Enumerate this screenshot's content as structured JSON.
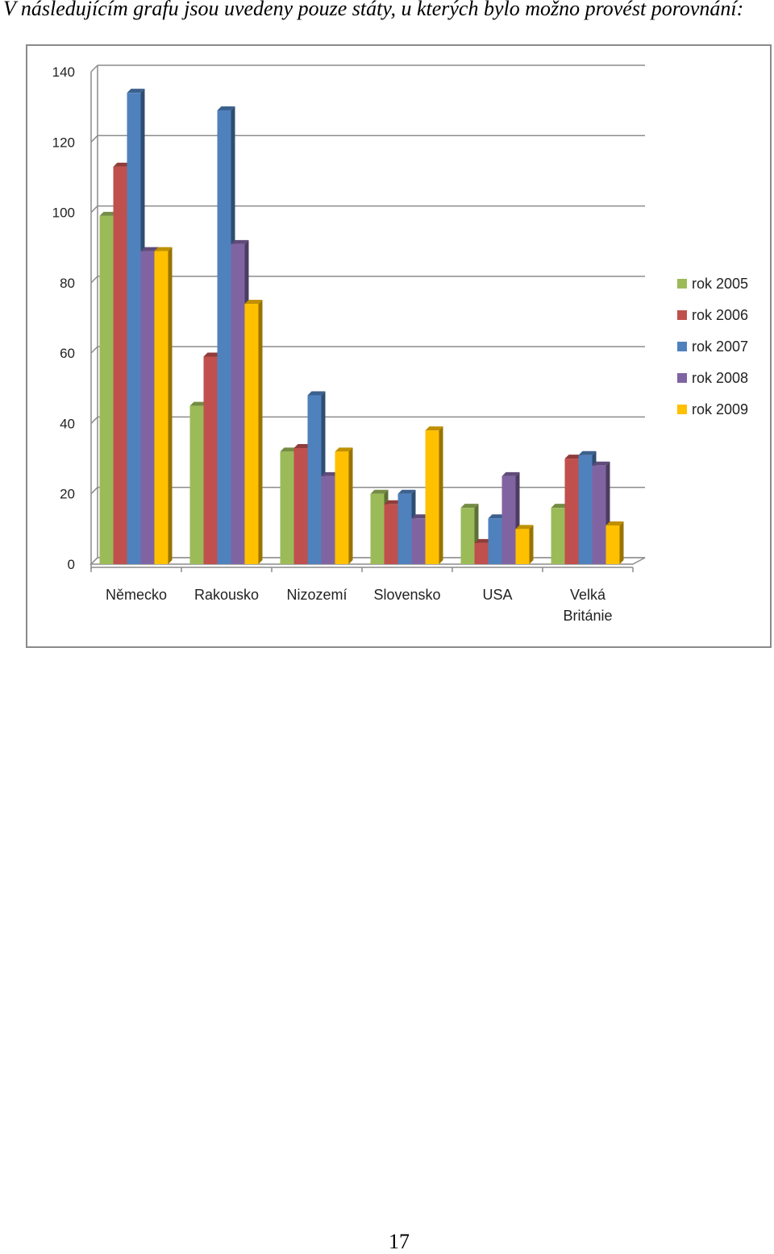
{
  "page": {
    "intro_text": "V následujícím grafu jsou uvedeny pouze státy, u kterých bylo možno provést porovnání:",
    "page_number": "17"
  },
  "chart_data": {
    "type": "bar",
    "title": "",
    "xlabel": "",
    "ylabel": "",
    "ylim": [
      0,
      140
    ],
    "yticks": [
      0,
      20,
      40,
      60,
      80,
      100,
      120,
      140
    ],
    "grid": true,
    "legend_position": "right",
    "style": "3d-clustered-column",
    "categories": [
      [
        "Německo"
      ],
      [
        "Rakousko"
      ],
      [
        "Nizozemí"
      ],
      [
        "Slovensko"
      ],
      [
        "USA"
      ],
      [
        "Velká",
        "Británie"
      ]
    ],
    "series": [
      {
        "name": "rok 2005",
        "color": "#9bbb59",
        "values": [
          99,
          45,
          32,
          20,
          16,
          16
        ]
      },
      {
        "name": "rok 2006",
        "color": "#c0504d",
        "values": [
          113,
          59,
          33,
          17,
          6,
          30
        ]
      },
      {
        "name": "rok 2007",
        "color": "#4f81bd",
        "values": [
          134,
          129,
          48,
          20,
          13,
          31
        ]
      },
      {
        "name": "rok 2008",
        "color": "#8064a2",
        "values": [
          89,
          91,
          25,
          13,
          25,
          28
        ]
      },
      {
        "name": "rok 2009",
        "color": "#ffc000",
        "values": [
          89,
          74,
          32,
          38,
          10,
          11
        ]
      }
    ]
  }
}
